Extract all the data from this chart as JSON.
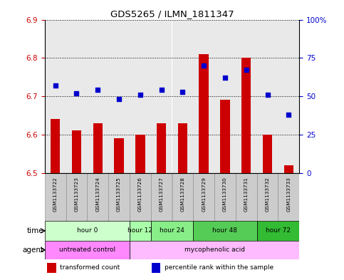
{
  "title": "GDS5265 / ILMN_1811347",
  "samples": [
    "GSM1133722",
    "GSM1133723",
    "GSM1133724",
    "GSM1133725",
    "GSM1133726",
    "GSM1133727",
    "GSM1133728",
    "GSM1133729",
    "GSM1133730",
    "GSM1133731",
    "GSM1133732",
    "GSM1133733"
  ],
  "transformed_counts": [
    6.64,
    6.61,
    6.63,
    6.59,
    6.6,
    6.63,
    6.63,
    6.81,
    6.69,
    6.8,
    6.6,
    6.52
  ],
  "percentile_ranks": [
    57,
    52,
    54,
    48,
    51,
    54,
    53,
    70,
    62,
    67,
    51,
    38
  ],
  "bar_baseline": 6.5,
  "ylim": [
    6.5,
    6.9
  ],
  "yticks": [
    6.5,
    6.6,
    6.7,
    6.8,
    6.9
  ],
  "y2lim": [
    0,
    100
  ],
  "y2ticks": [
    0,
    25,
    50,
    75,
    100
  ],
  "bar_color": "#cc0000",
  "dot_color": "#0000cc",
  "time_groups": [
    {
      "label": "hour 0",
      "start": 0,
      "end": 3,
      "color": "#ccffcc"
    },
    {
      "label": "hour 12",
      "start": 4,
      "end": 4,
      "color": "#aaffaa"
    },
    {
      "label": "hour 24",
      "start": 5,
      "end": 6,
      "color": "#88ee88"
    },
    {
      "label": "hour 48",
      "start": 7,
      "end": 9,
      "color": "#55cc55"
    },
    {
      "label": "hour 72",
      "start": 10,
      "end": 11,
      "color": "#33bb33"
    }
  ],
  "agent_groups": [
    {
      "label": "untreated control",
      "start": 0,
      "end": 3,
      "color": "#ff88ff"
    },
    {
      "label": "mycophenolic acid",
      "start": 4,
      "end": 11,
      "color": "#ffbbff"
    }
  ],
  "legend_items": [
    {
      "label": "transformed count",
      "color": "#cc0000"
    },
    {
      "label": "percentile rank within the sample",
      "color": "#0000cc"
    }
  ]
}
